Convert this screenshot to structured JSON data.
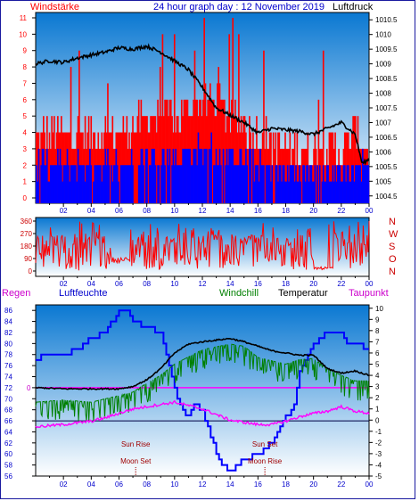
{
  "header": {
    "left_label": "Windstärke",
    "title": "24 hour graph day : 12 November 2019",
    "right_label": "Luftdruck"
  },
  "wind_dir_letters": [
    "N",
    "W",
    "S",
    "O",
    "N"
  ],
  "lower_header": {
    "regen": "Regen",
    "luftfeuchte": "Luftfeuchte",
    "windchill": "Windchill",
    "temperatur": "Temperatur",
    "taupunkt": "Taupunkt"
  },
  "events": {
    "sun_rise": "Sun Rise",
    "moon_set": "Moon Set",
    "sun_set": "Sun Set",
    "moon_rise": "Moon Rise"
  },
  "colors": {
    "frame": "#1a1aa0",
    "wind_gust": "#ff0000",
    "wind_avg": "#0000ff",
    "pressure": "#000000",
    "wind_dir": "#ff0000",
    "humidity": "#0000ff",
    "windchill": "#008000",
    "temperature": "#000000",
    "dewpoint": "#ff00ff",
    "zero_line": "#ff00ff",
    "event_marker": "#a00000",
    "bg_top": "#0a78d2",
    "bg_bottom": "#ffffff"
  },
  "chart_data": [
    {
      "type": "bar",
      "name": "wind-pressure",
      "x_ticks": [
        "02",
        "04",
        "06",
        "08",
        "10",
        "12",
        "14",
        "16",
        "18",
        "20",
        "22",
        "00"
      ],
      "left_axis": {
        "label": "Windstärke",
        "ticks": [
          "0",
          "1",
          "2",
          "3",
          "4",
          "5",
          "6",
          "7",
          "8",
          "9",
          "10",
          "11"
        ],
        "range": [
          0,
          11
        ]
      },
      "right_axis": {
        "label": "Luftdruck",
        "ticks": [
          "1004.5",
          "1005",
          "1005.5",
          "1006",
          "1006.5",
          "1007",
          "1007.5",
          "1008",
          "1008.5",
          "1009",
          "1009.5",
          "1010",
          "1010.5"
        ],
        "range": [
          1004.25,
          1010.75
        ]
      },
      "gust_profile": {
        "hours": [
          0,
          2,
          4,
          6,
          8,
          10,
          12,
          13,
          14,
          16,
          18,
          20,
          22,
          23,
          24
        ],
        "levels": [
          4,
          4,
          4,
          4,
          5,
          5,
          6,
          6,
          5,
          4,
          3,
          3,
          3,
          4,
          3
        ]
      },
      "avg_profile": {
        "hours": [
          0,
          2,
          4,
          6,
          8,
          10,
          12,
          14,
          16,
          18,
          20,
          22,
          24
        ],
        "levels": [
          2,
          2,
          2,
          2,
          2.5,
          2.5,
          3,
          2.5,
          2,
          1.5,
          1.5,
          1.5,
          2
        ]
      },
      "pressure_series": {
        "hours": [
          0,
          1,
          2,
          3,
          4,
          5,
          6,
          7,
          8,
          9,
          10,
          11,
          12,
          13,
          14,
          15,
          16,
          17,
          18,
          19,
          20,
          21,
          22,
          23,
          23.5,
          24
        ],
        "values": [
          1009.0,
          1009.1,
          1009.05,
          1009.2,
          1009.3,
          1009.4,
          1009.55,
          1009.5,
          1009.6,
          1009.4,
          1009.1,
          1008.8,
          1008.2,
          1007.5,
          1007.25,
          1007.0,
          1006.65,
          1006.8,
          1006.75,
          1006.7,
          1006.6,
          1006.8,
          1007.0,
          1006.6,
          1005.6,
          1005.75
        ]
      }
    },
    {
      "type": "line",
      "name": "wind-direction",
      "x_ticks": [
        "02",
        "04",
        "06",
        "08",
        "10",
        "12",
        "14",
        "16",
        "18",
        "20",
        "22",
        "00"
      ],
      "left_axis": {
        "ticks": [
          "0",
          "90",
          "180",
          "270",
          "360"
        ],
        "range": [
          0,
          360
        ]
      },
      "direction_letters": [
        "N",
        "W",
        "S",
        "O",
        "N"
      ]
    },
    {
      "type": "line",
      "name": "temperature-humidity",
      "x_ticks": [
        "02",
        "04",
        "06",
        "08",
        "10",
        "12",
        "14",
        "16",
        "18",
        "20",
        "22",
        "00"
      ],
      "left_axis": {
        "label": "Luftfeuchte",
        "ticks": [
          "56",
          "58",
          "60",
          "62",
          "64",
          "66",
          "68",
          "70",
          "72",
          "74",
          "76",
          "78",
          "80",
          "82",
          "84",
          "86"
        ],
        "range": [
          56,
          87
        ]
      },
      "right_axis": {
        "label": "Temperatur",
        "ticks": [
          "-5",
          "-4",
          "-3",
          "-2",
          "-1",
          "0",
          "1",
          "2",
          "3",
          "4",
          "5",
          "6",
          "7",
          "8",
          "9",
          "10"
        ],
        "range": [
          -5,
          10.3
        ]
      },
      "regen_axis": {
        "label": "Regen",
        "ticks": [
          "0"
        ]
      },
      "series": [
        {
          "name": "Luftfeuchte",
          "hours": [
            0,
            0.5,
            2,
            3,
            4,
            5,
            6,
            6.5,
            7,
            8,
            9,
            10,
            10.5,
            11,
            11.5,
            12,
            12.5,
            13,
            13.5,
            14,
            14.5,
            15,
            16,
            17,
            18,
            18.5,
            19,
            20,
            21,
            22,
            22.5,
            23,
            24
          ],
          "values": [
            77,
            78,
            78,
            79,
            81,
            82,
            86,
            86,
            84,
            83,
            82,
            72,
            68,
            67,
            69,
            68,
            64,
            60,
            58,
            57,
            58,
            59,
            60,
            62,
            67,
            68,
            75,
            80,
            82,
            82,
            80,
            80,
            79
          ]
        },
        {
          "name": "Windchill",
          "hours": [
            0,
            2,
            4,
            6,
            7,
            8,
            9,
            10,
            12,
            14,
            15,
            16,
            17,
            18,
            19,
            20,
            21,
            22,
            23,
            24
          ],
          "values": [
            1.6,
            1.8,
            1.6,
            2.2,
            2.5,
            3.3,
            4,
            5,
            6.3,
            6.8,
            6.6,
            5.6,
            5.3,
            5,
            5.4,
            5.5,
            4.6,
            4,
            3.5,
            3.5
          ]
        },
        {
          "name": "Temperatur",
          "hours": [
            0,
            2,
            4,
            6,
            7,
            8,
            9,
            10,
            11,
            12,
            14,
            15,
            16,
            17,
            18,
            19,
            20,
            21,
            22,
            23,
            24
          ],
          "values": [
            2.9,
            2.8,
            2.8,
            2.8,
            3.0,
            3.6,
            4.6,
            6.0,
            6.8,
            7.0,
            7.3,
            7.0,
            6.6,
            6.2,
            6.0,
            5.8,
            5.8,
            4.6,
            4.2,
            4.4,
            4.0
          ]
        },
        {
          "name": "Taupunkt",
          "hours": [
            0,
            2,
            4,
            5,
            6,
            7,
            8,
            9,
            10,
            11,
            12,
            13,
            14,
            15,
            16,
            17,
            18,
            19,
            20,
            21,
            22,
            23,
            24
          ],
          "values": [
            -0.6,
            -0.4,
            -0.1,
            0.2,
            0.6,
            1.0,
            1.2,
            1.4,
            1.6,
            1.3,
            1.0,
            0.5,
            0.0,
            -0.2,
            -0.4,
            -0.4,
            -0.1,
            0.3,
            0.6,
            0.8,
            1.2,
            0.8,
            0.6
          ]
        }
      ],
      "reference_lines": {
        "humidity_72": 72,
        "humidity_66": 66
      },
      "events": [
        {
          "label": "Sun Rise",
          "hour": 7.2
        },
        {
          "label": "Moon Set",
          "hour": 7.2
        },
        {
          "label": "Sun Set",
          "hour": 16.5
        },
        {
          "label": "Moon Rise",
          "hour": 16.5
        }
      ]
    }
  ]
}
